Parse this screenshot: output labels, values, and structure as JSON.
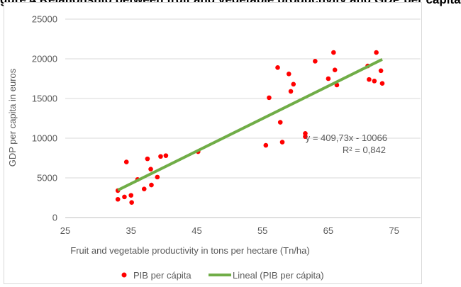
{
  "caption_clipped": "gure 4 Relationship between fruit and vegetable productivity and GDP per capita",
  "chart_data": {
    "type": "scatter",
    "title": "",
    "xlabel": "Fruit and vegetable productivity in tons per hectare (Tn/ha)",
    "ylabel": "GDP per capita in euros",
    "xlim": [
      25,
      80
    ],
    "ylim": [
      0,
      25000
    ],
    "x_ticks": [
      "25",
      "35",
      "45",
      "55",
      "65",
      "75"
    ],
    "y_ticks": [
      "0",
      "5000",
      "10000",
      "15000",
      "20000",
      "25000"
    ],
    "grid": "horizontal",
    "legend_position": "bottom",
    "series": [
      {
        "name": "PIB per cápita",
        "color": "#ff0000",
        "points": [
          [
            33,
            3400
          ],
          [
            33,
            2300
          ],
          [
            34,
            2600
          ],
          [
            34.3,
            7000
          ],
          [
            35,
            2800
          ],
          [
            35.1,
            1900
          ],
          [
            36,
            4800
          ],
          [
            37,
            3600
          ],
          [
            37.5,
            7400
          ],
          [
            38,
            6100
          ],
          [
            38.1,
            4100
          ],
          [
            39,
            5100
          ],
          [
            39.5,
            7700
          ],
          [
            40.3,
            7800
          ],
          [
            45.2,
            8300
          ],
          [
            55.5,
            9100
          ],
          [
            56,
            15100
          ],
          [
            57.3,
            18900
          ],
          [
            57.7,
            12000
          ],
          [
            58,
            9500
          ],
          [
            59,
            18100
          ],
          [
            59.3,
            15900
          ],
          [
            59.7,
            16800
          ],
          [
            61.5,
            10600
          ],
          [
            61.5,
            10200
          ],
          [
            63,
            19700
          ],
          [
            65,
            17500
          ],
          [
            65.8,
            20800
          ],
          [
            66,
            18600
          ],
          [
            66.3,
            16700
          ],
          [
            71,
            19100
          ],
          [
            71.2,
            17400
          ],
          [
            72,
            17200
          ],
          [
            72.3,
            20800
          ],
          [
            73,
            18500
          ],
          [
            73.2,
            16900
          ]
        ]
      }
    ],
    "trendline": {
      "name": "Lineal (PIB per cápita)",
      "color": "#70ad47",
      "slope": 409.73,
      "intercept": -10066,
      "x_range": [
        33,
        73.2
      ],
      "equation_label": "y = 409,73x - 10066",
      "r2_label": "R² = 0,842"
    }
  }
}
